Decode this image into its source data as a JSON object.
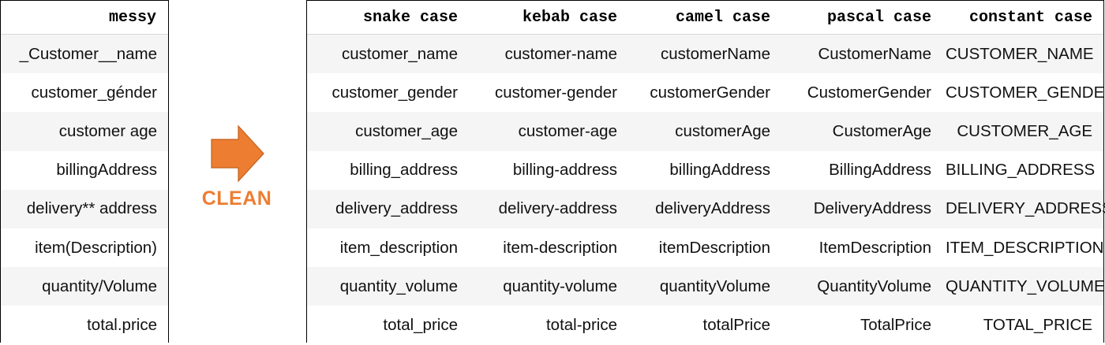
{
  "messy_table": {
    "header": "messy",
    "rows": [
      "_Customer__name",
      "customer_génder",
      "customer age",
      "billingAddress",
      "delivery** address",
      "item(Description)",
      "quantity/Volume",
      "total.price"
    ]
  },
  "transition": {
    "label": "CLEAN",
    "arrow_color": "#ed7d31",
    "icon": "right-arrow-icon"
  },
  "clean_table": {
    "headers": [
      "snake case",
      "kebab case",
      "camel case",
      "pascal case",
      "constant case"
    ],
    "rows": [
      [
        "customer_name",
        "customer-name",
        "customerName",
        "CustomerName",
        "CUSTOMER_NAME"
      ],
      [
        "customer_gender",
        "customer-gender",
        "customerGender",
        "CustomerGender",
        "CUSTOMER_GENDER"
      ],
      [
        "customer_age",
        "customer-age",
        "customerAge",
        "CustomerAge",
        "CUSTOMER_AGE"
      ],
      [
        "billing_address",
        "billing-address",
        "billingAddress",
        "BillingAddress",
        "BILLING_ADDRESS"
      ],
      [
        "delivery_address",
        "delivery-address",
        "deliveryAddress",
        "DeliveryAddress",
        "DELIVERY_ADDRESS"
      ],
      [
        "item_description",
        "item-description",
        "itemDescription",
        "ItemDescription",
        "ITEM_DESCRIPTION"
      ],
      [
        "quantity_volume",
        "quantity-volume",
        "quantityVolume",
        "QuantityVolume",
        "QUANTITY_VOLUME"
      ],
      [
        "total_price",
        "total-price",
        "totalPrice",
        "TotalPrice",
        "TOTAL_PRICE"
      ]
    ]
  }
}
